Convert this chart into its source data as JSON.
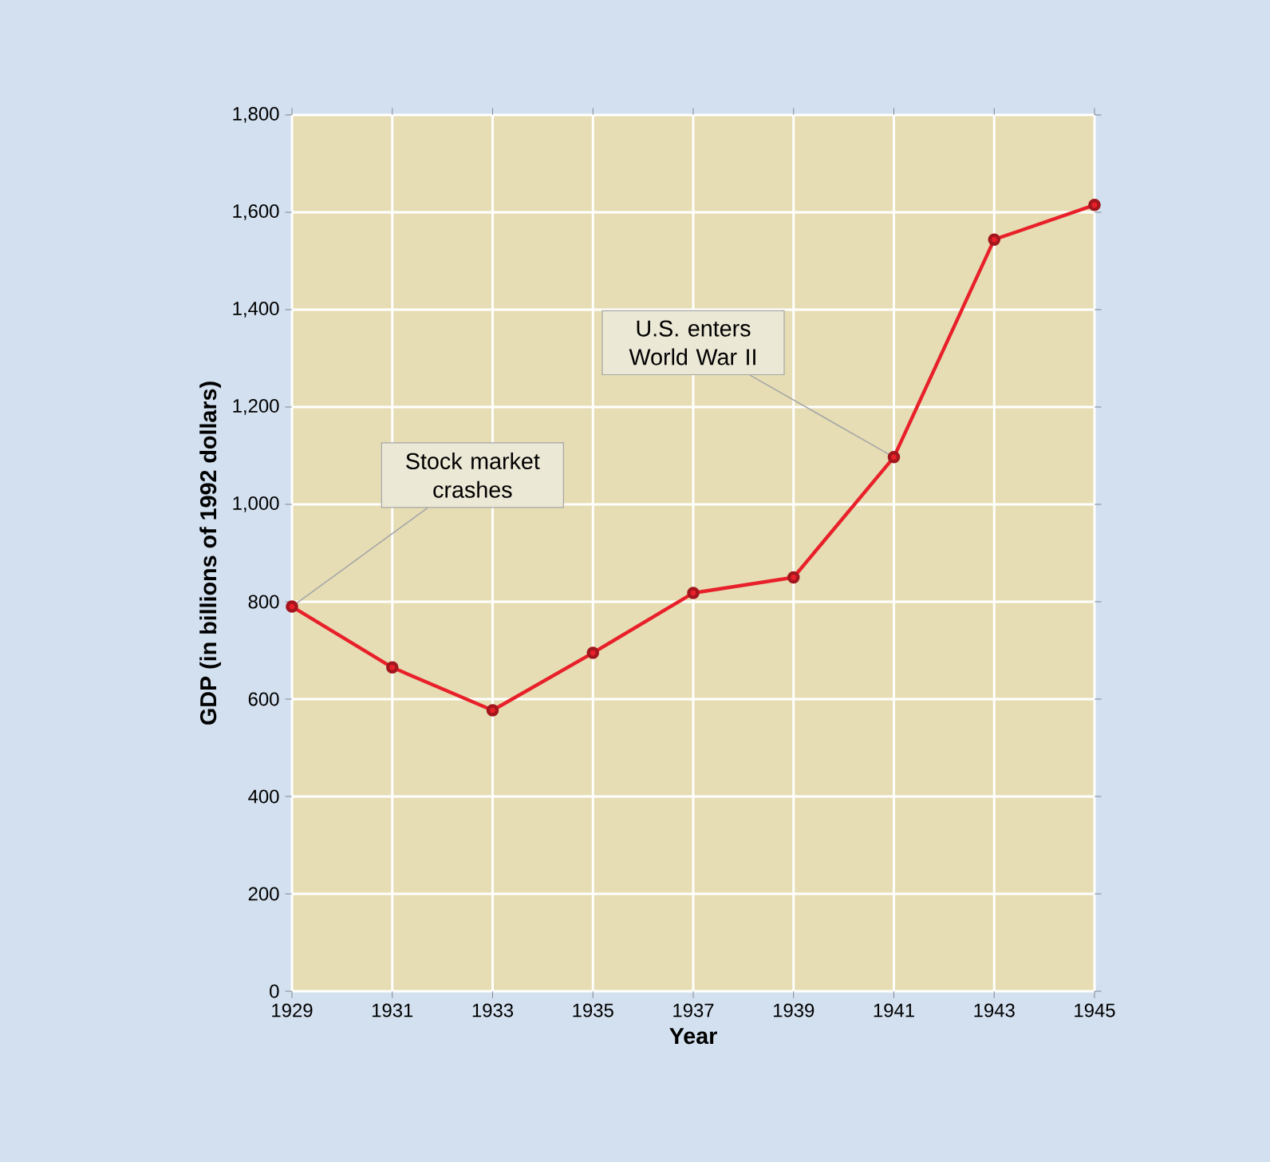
{
  "chart_data": {
    "type": "line",
    "xlabel": "Year",
    "ylabel": "GDP (in billions of 1992 dollars)",
    "x": [
      1929,
      1931,
      1933,
      1935,
      1937,
      1939,
      1941,
      1943,
      1945
    ],
    "series": [
      {
        "color": "#e8202a",
        "values": [
          790,
          665,
          577,
          695,
          818,
          850,
          1097,
          1544,
          1615
        ]
      }
    ],
    "xlim": [
      1929,
      1945
    ],
    "ylim": [
      0,
      1800
    ],
    "xticks": [
      1929,
      1931,
      1933,
      1935,
      1937,
      1939,
      1941,
      1943,
      1945
    ],
    "yticks": [
      0,
      200,
      400,
      600,
      800,
      {
        "value": 1000,
        "label": "1,000"
      },
      {
        "value": 1200,
        "label": "1,200"
      },
      {
        "value": 1400,
        "label": "1,400"
      },
      {
        "value": 1600,
        "label": "1,600"
      },
      {
        "value": 1800,
        "label": "1,800"
      }
    ],
    "grid": true,
    "marker": "circle",
    "line_style": "solid",
    "annotations": [
      {
        "text": "Stock market crashes",
        "x": 1929,
        "y": 790
      },
      {
        "text": "U.S. enters World War II",
        "x": 1941,
        "y": 1097
      }
    ]
  }
}
